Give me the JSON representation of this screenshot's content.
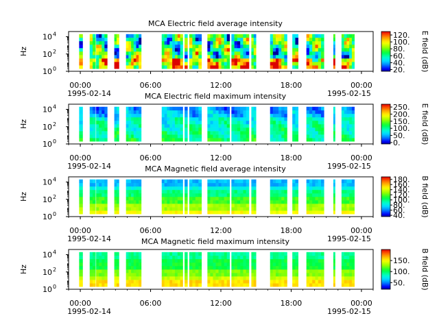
{
  "figure": {
    "date_start": "1995-02-14",
    "date_end": "1995-02-15"
  },
  "chart_data": [
    {
      "type": "heatmap",
      "title": "MCA  Electric field average intensity",
      "ylabel": "Hz",
      "colorbar_label": "E field (dB)",
      "colorbar_ticks": [
        "20.",
        "40.",
        "60.",
        "80.",
        "100.",
        "120."
      ],
      "colorbar_range": [
        15,
        130
      ],
      "ylim_log10": [
        0,
        4.6
      ],
      "yticks": [
        {
          "base": "10",
          "exp": "0",
          "v": 0
        },
        {
          "base": "10",
          "exp": "2",
          "v": 2
        },
        {
          "base": "10",
          "exp": "4",
          "v": 4
        }
      ],
      "xlim_hours": [
        -1,
        25
      ],
      "xticks": [
        {
          "h": 0,
          "label": "00:00"
        },
        {
          "h": 6,
          "label": "06:00"
        },
        {
          "h": 12,
          "label": "12:00"
        },
        {
          "h": 18,
          "label": "18:00"
        },
        {
          "h": 24,
          "label": "00:00"
        }
      ],
      "mode": "E_avg"
    },
    {
      "type": "heatmap",
      "title": "MCA  Electric field maximum intensity",
      "ylabel": "Hz",
      "colorbar_label": "E field (dB)",
      "colorbar_ticks": [
        "0.",
        "50.",
        "100.",
        "150.",
        "200.",
        "250."
      ],
      "colorbar_range": [
        -10,
        270
      ],
      "ylim_log10": [
        0,
        4.6
      ],
      "yticks": [
        {
          "base": "10",
          "exp": "0",
          "v": 0
        },
        {
          "base": "10",
          "exp": "2",
          "v": 2
        },
        {
          "base": "10",
          "exp": "4",
          "v": 4
        }
      ],
      "xlim_hours": [
        -1,
        25
      ],
      "xticks": [
        {
          "h": 0,
          "label": "00:00"
        },
        {
          "h": 6,
          "label": "06:00"
        },
        {
          "h": 12,
          "label": "12:00"
        },
        {
          "h": 18,
          "label": "18:00"
        },
        {
          "h": 24,
          "label": "00:00"
        }
      ],
      "mode": "E_max"
    },
    {
      "type": "heatmap",
      "title": "MCA  Magnetic field average intensity",
      "ylabel": "Hz",
      "colorbar_label": "B field (dB)",
      "colorbar_ticks": [
        "40.",
        "60.",
        "80.",
        "100.",
        "120.",
        "140.",
        "160.",
        "180."
      ],
      "colorbar_range": [
        35,
        190
      ],
      "ylim_log10": [
        0,
        4.6
      ],
      "yticks": [
        {
          "base": "10",
          "exp": "0",
          "v": 0
        },
        {
          "base": "10",
          "exp": "2",
          "v": 2
        },
        {
          "base": "10",
          "exp": "4",
          "v": 4
        }
      ],
      "xlim_hours": [
        -1,
        25
      ],
      "xticks": [
        {
          "h": 0,
          "label": "00:00"
        },
        {
          "h": 6,
          "label": "06:00"
        },
        {
          "h": 12,
          "label": "12:00"
        },
        {
          "h": 18,
          "label": "18:00"
        },
        {
          "h": 24,
          "label": "00:00"
        }
      ],
      "mode": "B_avg"
    },
    {
      "type": "heatmap",
      "title": "MCA  Magnetic field maximum intensity",
      "ylabel": "Hz",
      "colorbar_label": "B field (dB)",
      "colorbar_ticks": [
        "50.",
        "100.",
        "150."
      ],
      "colorbar_range": [
        20,
        200
      ],
      "ylim_log10": [
        0,
        4.6
      ],
      "yticks": [
        {
          "base": "10",
          "exp": "0",
          "v": 0
        },
        {
          "base": "10",
          "exp": "2",
          "v": 2
        },
        {
          "base": "10",
          "exp": "4",
          "v": 4
        }
      ],
      "xlim_hours": [
        -1,
        25
      ],
      "xticks": [
        {
          "h": 0,
          "label": "00:00"
        },
        {
          "h": 6,
          "label": "06:00"
        },
        {
          "h": 12,
          "label": "12:00"
        },
        {
          "h": 18,
          "label": "18:00"
        },
        {
          "h": 24,
          "label": "00:00"
        }
      ],
      "mode": "B_max"
    }
  ],
  "data_segments_hours": [
    [
      -0.1,
      0.2
    ],
    [
      0.8,
      1.3
    ],
    [
      1.35,
      2.3
    ],
    [
      2.9,
      3.3
    ],
    [
      3.9,
      5.2
    ],
    [
      6.95,
      8.75
    ],
    [
      8.9,
      9.15
    ],
    [
      9.3,
      10.35
    ],
    [
      10.85,
      12.75
    ],
    [
      12.9,
      14.4
    ],
    [
      14.6,
      15.0
    ],
    [
      16.2,
      17.65
    ],
    [
      18.1,
      18.6
    ],
    [
      19.3,
      20.8
    ],
    [
      21.6,
      21.75
    ],
    [
      22.3,
      23.4
    ]
  ]
}
